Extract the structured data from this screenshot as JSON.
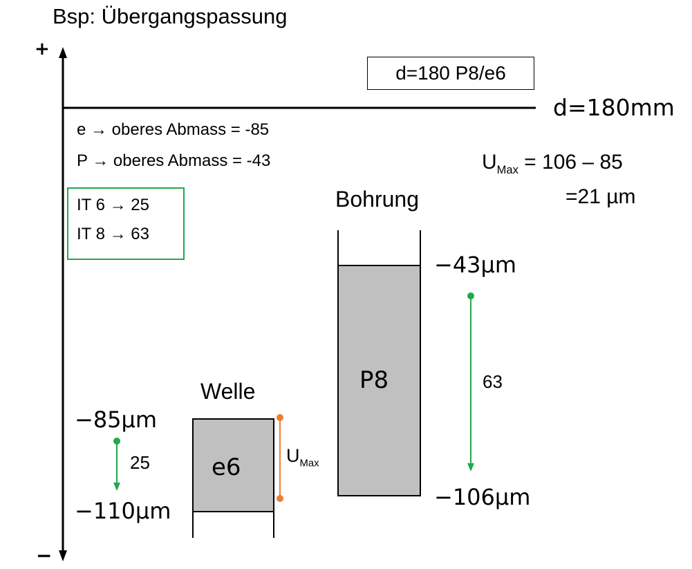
{
  "title": "Bsp: Übergangspassung",
  "axis": {
    "plus": "+",
    "minus": "−"
  },
  "fit_label": "d=180 P8/e6",
  "nominal_label": "d=180mm",
  "deviations": {
    "e_line": "e → oberes Abmass = -85",
    "p_line": "P → oberes Abmass = -43"
  },
  "tolerances": {
    "it6": "IT 6 → 25",
    "it8": "IT 8 → 63"
  },
  "umax_calc": {
    "u": "U",
    "sub": "Max",
    "expr": " = 106 – 85",
    "result": "=21 µm"
  },
  "bohrung": {
    "title": "Bohrung",
    "field": "P8",
    "upper": "−43µm",
    "lower": "−106µm",
    "width": "63"
  },
  "welle": {
    "title": "Welle",
    "field": "e6",
    "upper": "−85µm",
    "lower": "−110µm",
    "width": "25"
  },
  "umax_marker": {
    "u": "U",
    "sub": "Max"
  },
  "colors": {
    "field_fill": "#c0c0c0",
    "green": "#21a84a",
    "orange": "#ed7d31",
    "line": "#000000"
  }
}
